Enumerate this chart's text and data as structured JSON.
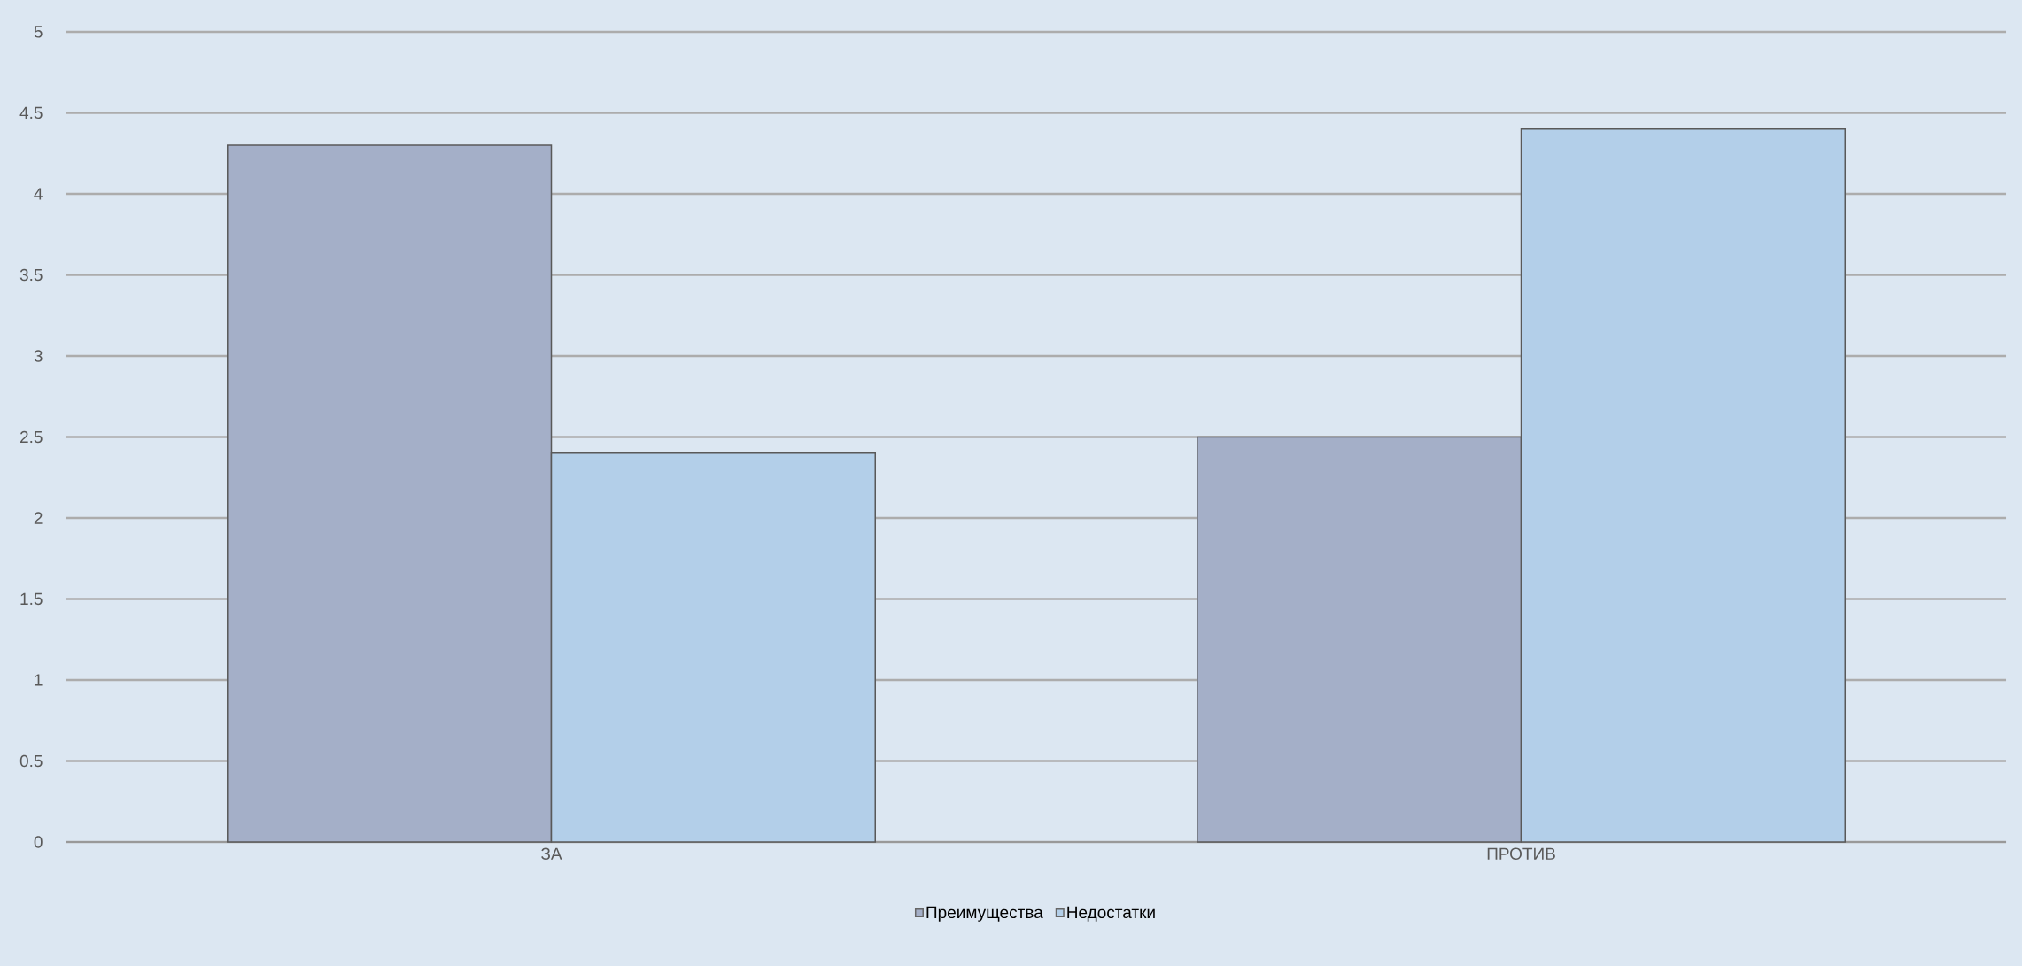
{
  "chart_data": {
    "type": "bar",
    "categories": [
      "ЗА",
      "ПРОТИВ"
    ],
    "series": [
      {
        "name": "Преимущества",
        "color": "#a4afc8",
        "values": [
          4.3,
          2.5
        ]
      },
      {
        "name": "Недостатки",
        "color": "#b3cfe9",
        "values": [
          2.4,
          4.4
        ]
      }
    ],
    "ylim": [
      0,
      5
    ],
    "yticks": [
      0,
      0.5,
      1,
      1.5,
      2,
      2.5,
      3,
      3.5,
      4,
      4.5,
      5
    ],
    "grid": "y",
    "legend": "bottom"
  }
}
